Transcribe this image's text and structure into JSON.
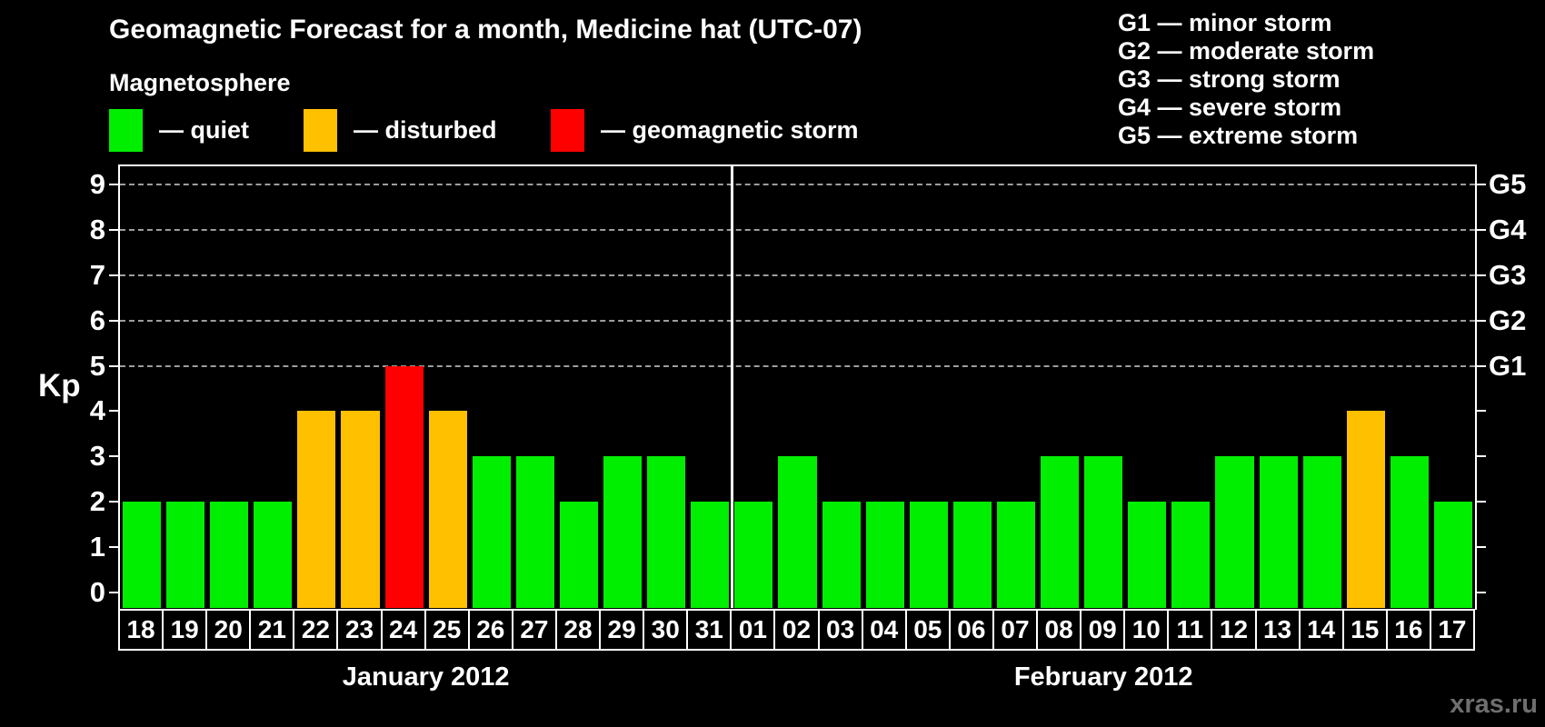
{
  "title": "Geomagnetic Forecast for a month, Medicine hat (UTC-07)",
  "legend": {
    "heading": "Magnetosphere",
    "items": [
      {
        "name": "quiet",
        "label": "— quiet",
        "color": "#00ee00"
      },
      {
        "name": "disturbed",
        "label": "— disturbed",
        "color": "#ffc000"
      },
      {
        "name": "storm",
        "label": "— geomagnetic storm",
        "color": "#ff0000"
      }
    ]
  },
  "g_legend": {
    "items": [
      {
        "code": "G1",
        "label": "G1 — minor storm"
      },
      {
        "code": "G2",
        "label": "G2 — moderate storm"
      },
      {
        "code": "G3",
        "label": "G3 — strong storm"
      },
      {
        "code": "G4",
        "label": "G4 — severe storm"
      },
      {
        "code": "G5",
        "label": "G5 — extreme storm"
      }
    ]
  },
  "watermark": "xras.ru",
  "chart_data": {
    "type": "bar",
    "title": "Geomagnetic Forecast for a month, Medicine hat (UTC-07)",
    "ylabel": "Kp",
    "ylim": [
      0,
      9
    ],
    "y_ticks": [
      0,
      1,
      2,
      3,
      4,
      5,
      6,
      7,
      8,
      9
    ],
    "gridlines_at_kp": [
      5,
      6,
      7,
      8,
      9
    ],
    "right_axis_labels": [
      {
        "text": "G1",
        "kp": 5
      },
      {
        "text": "G2",
        "kp": 6
      },
      {
        "text": "G3",
        "kp": 7
      },
      {
        "text": "G4",
        "kp": 8
      },
      {
        "text": "G5",
        "kp": 9
      }
    ],
    "color_rules": {
      "storm_min_kp": 5,
      "disturbed_min_kp": 4
    },
    "legend_position": "top-left",
    "grid": "dashed horizontal lines at Kp 5 through 9",
    "months": [
      {
        "label": "January 2012",
        "days": [
          "18",
          "19",
          "20",
          "21",
          "22",
          "23",
          "24",
          "25",
          "26",
          "27",
          "28",
          "29",
          "30",
          "31"
        ],
        "kp_values": [
          2,
          2,
          2,
          2,
          4,
          4,
          5,
          4,
          3,
          3,
          2,
          3,
          3,
          2
        ]
      },
      {
        "label": "February 2012",
        "days": [
          "01",
          "02",
          "03",
          "04",
          "05",
          "06",
          "07",
          "08",
          "09",
          "10",
          "11",
          "12",
          "13",
          "14",
          "15",
          "16",
          "17"
        ],
        "kp_values": [
          2,
          3,
          2,
          2,
          2,
          2,
          2,
          3,
          3,
          2,
          2,
          3,
          3,
          3,
          4,
          3,
          2
        ]
      }
    ]
  }
}
